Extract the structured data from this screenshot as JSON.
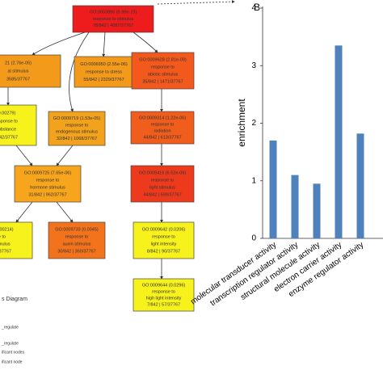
{
  "diagram": {
    "nodes": [
      {
        "lines": [
          "GO:0050896 (5.98e-19)",
          "response to stimulus",
          "78/842 | 4087/37767"
        ]
      },
      {
        "lines": [
          "21 (2.76e-05)",
          "al stimulus",
          "3585/37767"
        ]
      },
      {
        "lines": [
          "GO:0006950 (2.55e-06)",
          "response to stress",
          "55/842 | 2329/37767"
        ]
      },
      {
        "lines": [
          "GO:0009628 (2.81e-09)",
          "response to",
          "abiotic stimulus",
          "35/842 | 1471/37767"
        ]
      },
      {
        "lines": [
          "(0.00279)",
          "response to",
          "substance",
          "1342/37767"
        ]
      },
      {
        "lines": [
          "GO:0009719 (1.53e-05)",
          "response to",
          "endogenous stimulus",
          "32/842 | 1068/37767"
        ]
      },
      {
        "lines": [
          "GO:0009314 (1.22e-06)",
          "response to",
          "radiation",
          "44/842 | 613/37767"
        ]
      },
      {
        "lines": [
          "GO:0009725 (7.65e-06)",
          "response to",
          "hormone stimulus",
          "31/842 | 962/37767"
        ]
      },
      {
        "lines": [
          "GO:0009416 (6.52e-09)",
          "response to",
          "light stimulus",
          "44/842 | 599/37767"
        ]
      },
      {
        "lines": [
          "0 (0.00214)",
          "e to",
          "stimulus",
          "59/37767"
        ]
      },
      {
        "lines": [
          "GO:0009733 (0.0045)",
          "response to",
          "auxin stimulus",
          "30/842 | 360/37767"
        ]
      },
      {
        "lines": [
          "GO:0009642 (0.0206)",
          "response to",
          "light intensity",
          "8/842 | 90/37767"
        ]
      },
      {
        "lines": [
          "GO:0009644 (0.0296)",
          "response to",
          "high light intensity",
          "7/842 | 57/37767"
        ]
      }
    ],
    "legend": [
      "s Diagram",
      "_regulate",
      "_regulate",
      "ificant nodes",
      "ificant node"
    ]
  },
  "chart_data": {
    "type": "bar",
    "panel": "B",
    "ylabel": "enrichment",
    "categories": [
      "molecular transducer activity",
      "transcription regulator activity",
      "structural molecule activity",
      "electron carrier activity",
      "enzyme regulator activity"
    ],
    "values": [
      1.7,
      1.1,
      0.95,
      3.35,
      1.82
    ],
    "color": "#4f81bd",
    "ylim": [
      0,
      4
    ],
    "yticks": [
      0,
      1,
      2,
      3,
      4
    ]
  }
}
